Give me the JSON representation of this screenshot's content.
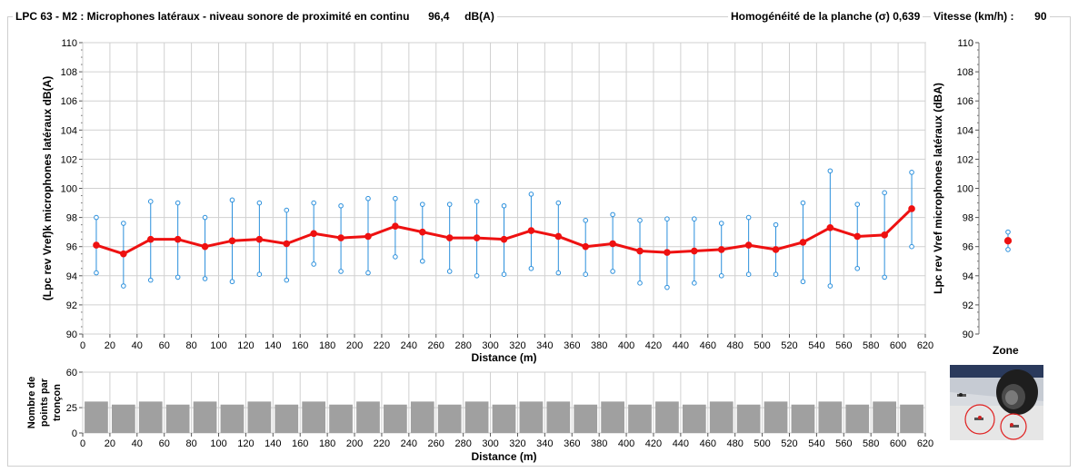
{
  "header": {
    "title": "LPC 63 - M2 : Microphones latéraux - niveau sonore de proximité en continu",
    "level_value": "96,4",
    "level_unit": "dB(A)",
    "homogeneity_label": "Homogénéité de la planche (σ)",
    "homogeneity_value": "0,639",
    "speed_label": "Vitesse (km/h) :",
    "speed_value": "90"
  },
  "colors": {
    "series": "#ee1111",
    "whisker": "#2a8fdc",
    "bars": "#a0a0a0",
    "grid": "#d0d0d0"
  },
  "chart_data": [
    {
      "type": "line",
      "ylabel": "(Lpc rev Vref)k microphones latéraux dB(A)",
      "xlabel": "Distance (m)",
      "xlim": [
        0,
        620
      ],
      "ylim": [
        90,
        110
      ],
      "xticks": [
        0,
        20,
        40,
        60,
        80,
        100,
        120,
        140,
        160,
        180,
        200,
        220,
        240,
        260,
        280,
        300,
        320,
        340,
        360,
        380,
        400,
        420,
        440,
        460,
        480,
        500,
        520,
        540,
        560,
        580,
        600,
        620
      ],
      "yticks": [
        90,
        92,
        94,
        96,
        98,
        100,
        102,
        104,
        106,
        108,
        110
      ],
      "grid": true,
      "x": [
        10,
        30,
        50,
        70,
        90,
        110,
        130,
        150,
        170,
        190,
        210,
        230,
        250,
        270,
        290,
        310,
        330,
        350,
        370,
        390,
        410,
        430,
        450,
        470,
        490,
        510,
        530,
        550,
        570,
        590,
        610
      ],
      "mean": [
        96.1,
        95.5,
        96.5,
        96.5,
        96.0,
        96.4,
        96.5,
        96.2,
        96.9,
        96.6,
        96.7,
        97.4,
        97.0,
        96.6,
        96.6,
        96.5,
        97.1,
        96.7,
        96.0,
        96.2,
        95.7,
        95.6,
        95.7,
        95.8,
        96.1,
        95.8,
        96.3,
        97.3,
        96.7,
        96.8,
        98.6
      ],
      "max": [
        98.0,
        97.6,
        99.1,
        99.0,
        98.0,
        99.2,
        99.0,
        98.5,
        99.0,
        98.8,
        99.3,
        99.3,
        98.9,
        98.9,
        99.1,
        98.8,
        99.6,
        99.0,
        97.8,
        98.2,
        97.8,
        97.9,
        97.9,
        97.6,
        98.0,
        97.5,
        99.0,
        101.2,
        98.9,
        99.7,
        101.1
      ],
      "min": [
        94.2,
        93.3,
        93.7,
        93.9,
        93.8,
        93.6,
        94.1,
        93.7,
        94.8,
        94.3,
        94.2,
        95.3,
        95.0,
        94.3,
        94.0,
        94.1,
        94.5,
        94.2,
        94.1,
        94.3,
        93.5,
        93.2,
        93.5,
        94.0,
        94.1,
        94.1,
        93.6,
        93.3,
        94.5,
        93.9,
        96.0
      ]
    },
    {
      "type": "scatter",
      "ylabel": "Lpc rev Vref microphones latéraux (dBA)",
      "ylim": [
        90,
        110
      ],
      "yticks": [
        90,
        92,
        94,
        96,
        98,
        100,
        102,
        104,
        106,
        108,
        110
      ],
      "mean": 96.4,
      "max": 97.0,
      "min": 95.8
    },
    {
      "type": "bar",
      "ylabel": "Nombre de points par tronçon",
      "xlabel": "Distance (m)",
      "xlim": [
        0,
        620
      ],
      "ylim": [
        0,
        60
      ],
      "yticks": [
        0,
        25,
        60
      ],
      "xticks": [
        0,
        20,
        40,
        60,
        80,
        100,
        120,
        140,
        160,
        180,
        200,
        220,
        240,
        260,
        280,
        300,
        320,
        340,
        360,
        380,
        400,
        420,
        440,
        460,
        480,
        500,
        520,
        540,
        560,
        580,
        600,
        620
      ],
      "x": [
        10,
        30,
        50,
        70,
        90,
        110,
        130,
        150,
        170,
        190,
        210,
        230,
        250,
        270,
        290,
        310,
        330,
        350,
        370,
        390,
        410,
        430,
        450,
        470,
        490,
        510,
        530,
        550,
        570,
        590,
        610
      ],
      "values": [
        31,
        28,
        31,
        28,
        31,
        28,
        31,
        28,
        31,
        28,
        31,
        28,
        31,
        28,
        31,
        28,
        31,
        31,
        28,
        31,
        28,
        31,
        28,
        31,
        28,
        31,
        28,
        31,
        28,
        31,
        28
      ]
    }
  ],
  "zone": {
    "label": "Zone"
  }
}
